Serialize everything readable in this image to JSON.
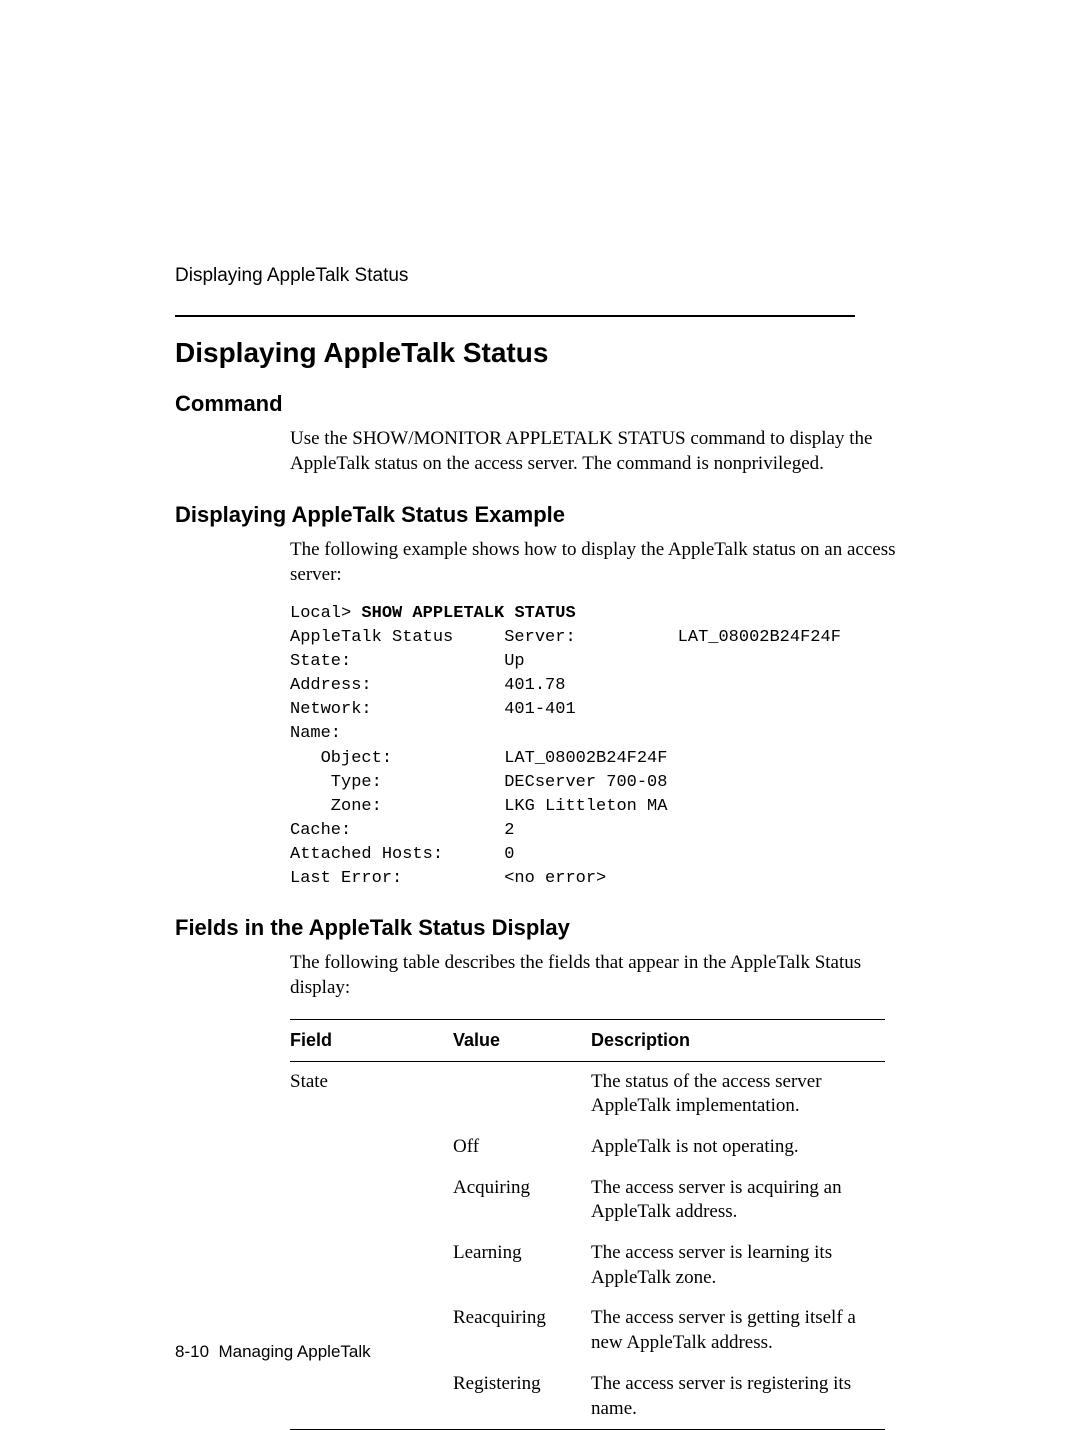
{
  "running_head": "Displaying AppleTalk Status",
  "title": "Displaying AppleTalk Status",
  "section_command": {
    "heading": "Command",
    "body": "Use the SHOW/MONITOR APPLETALK STATUS command to display the AppleTalk status on the access server. The command is nonprivileged."
  },
  "section_example": {
    "heading": "Displaying AppleTalk Status Example",
    "intro": "The following example shows how to display the AppleTalk status on an access server:",
    "prompt": "Local> ",
    "command": "SHOW APPLETALK STATUS",
    "output_lines": [
      "AppleTalk Status     Server:          LAT_08002B24F24F",
      "State:               Up",
      "Address:             401.78",
      "Network:             401-401",
      "Name:",
      "   Object:           LAT_08002B24F24F",
      "    Type:            DECserver 700-08",
      "    Zone:            LKG Littleton MA",
      "Cache:               2",
      "Attached Hosts:      0",
      "Last Error:          <no error>"
    ]
  },
  "section_fields": {
    "heading": "Fields in the AppleTalk Status Display",
    "intro": "The following table describes the fields that appear in the AppleTalk Status display:",
    "columns": [
      "Field",
      "Value",
      "Description"
    ],
    "rows": [
      [
        "State",
        "",
        "The status of the access server AppleTalk implementation."
      ],
      [
        "",
        "Off",
        "AppleTalk is not operating."
      ],
      [
        "",
        "Acquiring",
        "The access server is acquiring an AppleTalk address."
      ],
      [
        "",
        "Learning",
        "The access server is learning its AppleTalk zone."
      ],
      [
        "",
        "Reacquiring",
        "The access server is getting itself a new AppleTalk address."
      ],
      [
        "",
        "Registering",
        "The access server is registering its name."
      ]
    ]
  },
  "footer": {
    "page": "8-10",
    "label": "Managing AppleTalk"
  }
}
